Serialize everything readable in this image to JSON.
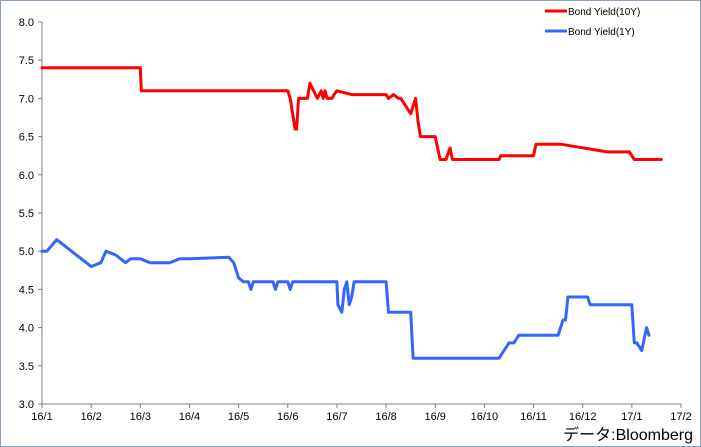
{
  "chart_data": {
    "type": "line",
    "title": "",
    "xlabel": "",
    "ylabel": "",
    "ylim": [
      3.0,
      8.0
    ],
    "yticks": [
      "3.0",
      "3.5",
      "4.0",
      "4.5",
      "5.0",
      "5.5",
      "6.0",
      "6.5",
      "7.0",
      "7.5",
      "8.0"
    ],
    "xlim": [
      0,
      13
    ],
    "xticks": [
      "16/1",
      "16/2",
      "16/3",
      "16/4",
      "16/5",
      "16/6",
      "16/7",
      "16/8",
      "16/9",
      "16/10",
      "16/11",
      "16/12",
      "17/1",
      "17/2"
    ],
    "grid": false,
    "legend_position": "top-right",
    "source_note": "データ:Bloomberg",
    "series": [
      {
        "name": "Bond Yield(10Y)",
        "color": "#ff0000",
        "x": [
          0,
          2.0,
          2.02,
          5.0,
          5.05,
          5.15,
          5.18,
          5.22,
          5.25,
          5.4,
          5.45,
          5.6,
          5.68,
          5.72,
          5.76,
          5.8,
          5.9,
          5.94,
          6.0,
          6.3,
          6.35,
          6.45,
          7.0,
          7.05,
          7.15,
          7.25,
          7.3,
          7.5,
          7.6,
          7.65,
          7.7,
          7.8,
          8.0,
          8.1,
          8.22,
          8.3,
          8.35,
          8.42,
          8.5,
          9.0,
          9.3,
          9.33,
          9.95,
          10.0,
          10.05,
          10.45,
          10.5,
          10.55,
          11.5,
          11.53,
          11.95,
          12.05,
          12.25,
          12.4,
          12.6
        ],
        "values": [
          7.4,
          7.4,
          7.1,
          7.1,
          7.0,
          6.6,
          6.6,
          7.0,
          7.0,
          7.0,
          7.2,
          7.0,
          7.1,
          7.0,
          7.1,
          7.0,
          7.0,
          7.05,
          7.1,
          7.05,
          7.05,
          7.05,
          7.05,
          7.0,
          7.05,
          7.0,
          7.0,
          6.8,
          7.0,
          6.7,
          6.5,
          6.5,
          6.5,
          6.2,
          6.2,
          6.35,
          6.2,
          6.2,
          6.2,
          6.2,
          6.2,
          6.25,
          6.25,
          6.25,
          6.4,
          6.4,
          6.4,
          6.4,
          6.3,
          6.3,
          6.3,
          6.2,
          6.2,
          6.2,
          6.2
        ]
      },
      {
        "name": "Bond Yield(1Y)",
        "color": "#3366ff",
        "x": [
          0,
          0.1,
          0.3,
          0.4,
          0.6,
          0.8,
          1.0,
          1.2,
          1.3,
          1.5,
          1.6,
          1.7,
          1.8,
          2.0,
          2.2,
          2.3,
          2.6,
          2.8,
          3.0,
          3.8,
          3.9,
          4.0,
          4.1,
          4.2,
          4.25,
          4.3,
          4.7,
          4.75,
          4.8,
          5.0,
          5.05,
          5.1,
          5.15,
          5.3,
          5.35,
          6.0,
          6.02,
          6.1,
          6.15,
          6.2,
          6.25,
          6.3,
          6.35,
          6.4,
          6.5,
          6.6,
          7.0,
          7.05,
          7.5,
          7.55,
          8.0,
          8.05,
          9.0,
          9.3,
          9.4,
          9.5,
          9.6,
          9.7,
          10.0,
          10.05,
          10.5,
          10.55,
          10.6,
          10.65,
          10.7,
          10.75,
          11.0,
          11.1,
          11.15,
          11.3,
          11.6,
          11.7,
          11.8,
          11.9,
          12.0,
          12.05,
          12.1,
          12.2,
          12.3,
          12.35
        ],
        "values": [
          5.0,
          5.0,
          5.15,
          5.1,
          5.0,
          4.9,
          4.8,
          4.85,
          5.0,
          4.95,
          4.9,
          4.85,
          4.9,
          4.9,
          4.85,
          4.85,
          4.85,
          4.9,
          4.9,
          4.92,
          4.85,
          4.65,
          4.6,
          4.6,
          4.5,
          4.6,
          4.6,
          4.5,
          4.6,
          4.6,
          4.5,
          4.6,
          4.6,
          4.6,
          4.6,
          4.6,
          4.3,
          4.2,
          4.5,
          4.6,
          4.3,
          4.4,
          4.6,
          4.6,
          4.6,
          4.6,
          4.6,
          4.2,
          4.2,
          3.6,
          3.6,
          3.6,
          3.6,
          3.6,
          3.7,
          3.8,
          3.8,
          3.9,
          3.9,
          3.9,
          3.9,
          4.0,
          4.1,
          4.1,
          4.4,
          4.4,
          4.4,
          4.4,
          4.3,
          4.3,
          4.3,
          4.3,
          4.3,
          4.3,
          4.3,
          3.8,
          3.8,
          3.7,
          4.0,
          3.9
        ]
      }
    ]
  }
}
